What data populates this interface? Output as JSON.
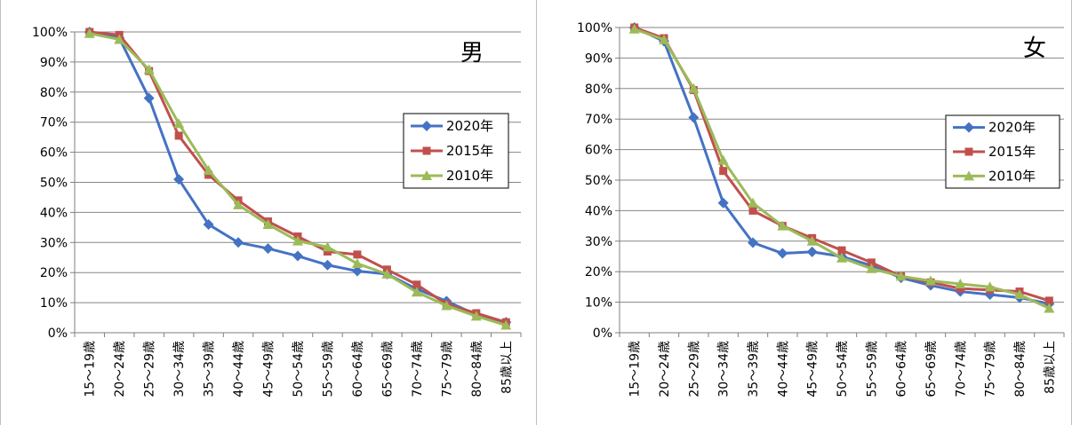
{
  "chart_data": [
    {
      "type": "line",
      "title": "男",
      "categories": [
        "15～19歳",
        "20～24歳",
        "25～29歳",
        "30～34歳",
        "35～39歳",
        "40～44歳",
        "45～49歳",
        "50～54歳",
        "55～59歳",
        "60～64歳",
        "65～69歳",
        "70～74歳",
        "75～79歳",
        "80～84歳",
        "85歳以上"
      ],
      "y_ticks": [
        "0%",
        "10%",
        "20%",
        "30%",
        "40%",
        "50%",
        "60%",
        "70%",
        "80%",
        "90%",
        "100%"
      ],
      "ylim": [
        0,
        100
      ],
      "grid": true,
      "legend_placement": "right",
      "series": [
        {
          "name": "2020年",
          "color": "#4472c4",
          "marker": "diamond",
          "values": [
            100,
            98,
            78,
            51,
            36,
            30,
            28,
            25.5,
            22.5,
            20.5,
            19.5,
            14.5,
            10.5,
            6,
            3.5
          ]
        },
        {
          "name": "2015年",
          "color": "#c0504d",
          "marker": "square",
          "values": [
            100,
            99,
            87,
            65.5,
            52.5,
            44,
            37,
            32,
            27,
            26,
            21,
            16,
            9.5,
            6.5,
            3.5
          ]
        },
        {
          "name": "2010年",
          "color": "#9bbb59",
          "marker": "triangle",
          "values": [
            99.5,
            97.5,
            87.5,
            69.5,
            54,
            42.5,
            36,
            30.5,
            28.5,
            23,
            19.5,
            13.5,
            9,
            5.5,
            2.5
          ]
        }
      ]
    },
    {
      "type": "line",
      "title": "女",
      "categories": [
        "15～19歳",
        "20～24歳",
        "25～29歳",
        "30～34歳",
        "35～39歳",
        "40～44歳",
        "45～49歳",
        "50～54歳",
        "55～59歳",
        "60～64歳",
        "65～69歳",
        "70～74歳",
        "75～79歳",
        "80～84歳",
        "85歳以上"
      ],
      "y_ticks": [
        "0%",
        "10%",
        "20%",
        "30%",
        "40%",
        "50%",
        "60%",
        "70%",
        "80%",
        "90%",
        "100%"
      ],
      "ylim": [
        0,
        100
      ],
      "grid": true,
      "legend_placement": "right",
      "series": [
        {
          "name": "2020年",
          "color": "#4472c4",
          "marker": "diamond",
          "values": [
            100,
            95.5,
            70.5,
            42.5,
            29.5,
            26,
            26.5,
            25,
            22,
            18,
            15.5,
            13.5,
            12.5,
            11.5,
            9.5
          ]
        },
        {
          "name": "2015年",
          "color": "#c0504d",
          "marker": "square",
          "values": [
            100,
            96.5,
            79.5,
            53,
            40,
            35,
            31,
            27,
            23,
            18.5,
            16.5,
            14.5,
            14,
            13.5,
            10.5
          ]
        },
        {
          "name": "2010年",
          "color": "#9bbb59",
          "marker": "triangle",
          "values": [
            99.5,
            96,
            80,
            56.5,
            42.5,
            35,
            30,
            24.5,
            21,
            18.5,
            17,
            16,
            15,
            12.5,
            8
          ]
        }
      ]
    }
  ]
}
